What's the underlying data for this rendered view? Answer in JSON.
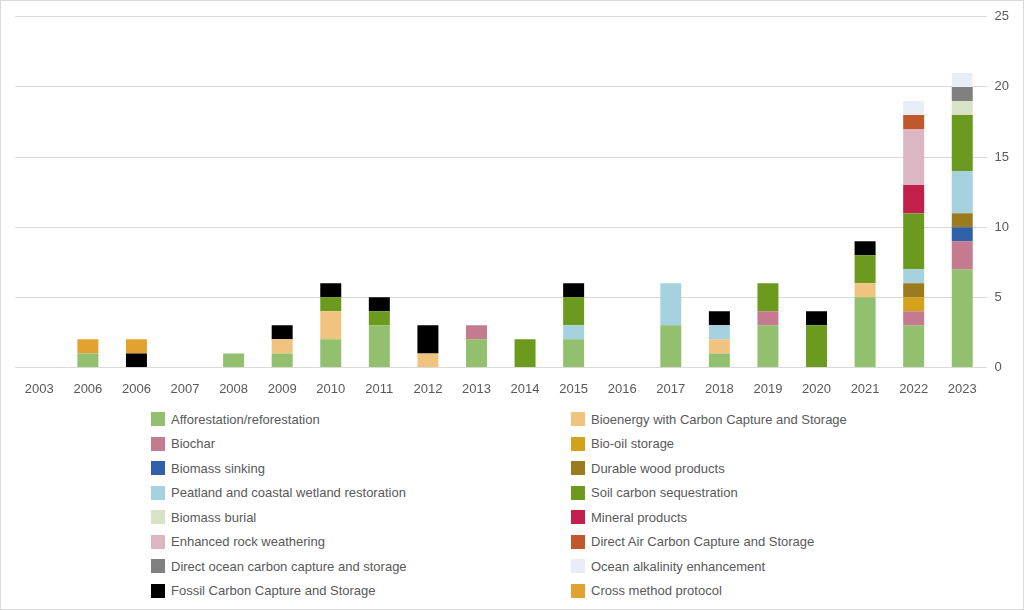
{
  "chart_data": {
    "type": "bar",
    "stacked": true,
    "grid": true,
    "legend": "bottom",
    "categories": [
      "2003",
      "2006",
      "2006",
      "2007",
      "2008",
      "2009",
      "2010",
      "2011",
      "2012",
      "2013",
      "2014",
      "2015",
      "2016",
      "2017",
      "2018",
      "2019",
      "2020",
      "2021",
      "2022",
      "2023"
    ],
    "ylim": [
      0,
      25
    ],
    "yticks": [
      0,
      5,
      10,
      15,
      20,
      25
    ],
    "series": [
      {
        "name": "Afforestation/reforestation",
        "color": "#92c06e",
        "values": [
          0,
          1,
          0,
          0,
          1,
          1,
          2,
          3,
          0,
          2,
          0,
          2,
          0,
          3,
          1,
          3,
          0,
          5,
          3,
          7
        ]
      },
      {
        "name": "Bioenergy with Carbon Capture and Storage",
        "color": "#f0c47e",
        "values": [
          0,
          0,
          0,
          0,
          0,
          1,
          2,
          0,
          1,
          0,
          0,
          0,
          0,
          0,
          1,
          0,
          0,
          1,
          0,
          0
        ]
      },
      {
        "name": "Biochar",
        "color": "#c47a8f",
        "values": [
          0,
          0,
          0,
          0,
          0,
          0,
          0,
          0,
          0,
          1,
          0,
          0,
          0,
          0,
          0,
          1,
          0,
          0,
          1,
          2
        ]
      },
      {
        "name": "Bio-oil storage",
        "color": "#d4a21a",
        "values": [
          0,
          0,
          0,
          0,
          0,
          0,
          0,
          0,
          0,
          0,
          0,
          0,
          0,
          0,
          0,
          0,
          0,
          0,
          1,
          0
        ]
      },
      {
        "name": "Biomass sinking",
        "color": "#3060a8",
        "values": [
          0,
          0,
          0,
          0,
          0,
          0,
          0,
          0,
          0,
          0,
          0,
          0,
          0,
          0,
          0,
          0,
          0,
          0,
          0,
          1
        ]
      },
      {
        "name": "Durable wood products",
        "color": "#9c7a1e",
        "values": [
          0,
          0,
          0,
          0,
          0,
          0,
          0,
          0,
          0,
          0,
          0,
          0,
          0,
          0,
          0,
          0,
          0,
          0,
          1,
          1
        ]
      },
      {
        "name": "Peatland and coastal wetland restoration",
        "color": "#a6d2e0",
        "values": [
          0,
          0,
          0,
          0,
          0,
          0,
          0,
          0,
          0,
          0,
          0,
          1,
          0,
          3,
          1,
          0,
          0,
          0,
          1,
          3
        ]
      },
      {
        "name": "Soil carbon sequestration",
        "color": "#6b9a1f",
        "values": [
          0,
          0,
          0,
          0,
          0,
          0,
          1,
          1,
          0,
          0,
          2,
          2,
          0,
          0,
          0,
          2,
          3,
          2,
          4,
          4
        ]
      },
      {
        "name": "Biomass burial",
        "color": "#d8e2c6",
        "values": [
          0,
          0,
          0,
          0,
          0,
          0,
          0,
          0,
          0,
          0,
          0,
          0,
          0,
          0,
          0,
          0,
          0,
          0,
          0,
          1
        ]
      },
      {
        "name": "Mineral products",
        "color": "#c21f4d",
        "values": [
          0,
          0,
          0,
          0,
          0,
          0,
          0,
          0,
          0,
          0,
          0,
          0,
          0,
          0,
          0,
          0,
          0,
          0,
          2,
          0
        ]
      },
      {
        "name": "Enhanced rock weathering",
        "color": "#dcb6c3",
        "values": [
          0,
          0,
          0,
          0,
          0,
          0,
          0,
          0,
          0,
          0,
          0,
          0,
          0,
          0,
          0,
          0,
          0,
          0,
          4,
          0
        ]
      },
      {
        "name": "Direct Air Carbon Capture and Storage",
        "color": "#c0582c",
        "values": [
          0,
          0,
          0,
          0,
          0,
          0,
          0,
          0,
          0,
          0,
          0,
          0,
          0,
          0,
          0,
          0,
          0,
          0,
          1,
          0
        ]
      },
      {
        "name": "Direct ocean carbon capture and storage",
        "color": "#808080",
        "values": [
          0,
          0,
          0,
          0,
          0,
          0,
          0,
          0,
          0,
          0,
          0,
          0,
          0,
          0,
          0,
          0,
          0,
          0,
          0,
          1
        ]
      },
      {
        "name": "Ocean alkalinity enhancement",
        "color": "#e8eef8",
        "values": [
          0,
          0,
          0,
          0,
          0,
          0,
          0,
          0,
          0,
          0,
          0,
          0,
          0,
          0,
          0,
          0,
          0,
          0,
          1,
          1
        ]
      },
      {
        "name": "Fossil Carbon Capture and Storage",
        "color": "#000000",
        "values": [
          0,
          0,
          1,
          0,
          0,
          1,
          1,
          1,
          2,
          0,
          0,
          1,
          0,
          0,
          1,
          0,
          1,
          1,
          0,
          0
        ]
      },
      {
        "name": "Cross method protocol",
        "color": "#e2a232",
        "values": [
          0,
          1,
          1,
          0,
          0,
          0,
          0,
          0,
          0,
          0,
          0,
          0,
          0,
          0,
          0,
          0,
          0,
          0,
          0,
          0
        ]
      }
    ]
  }
}
